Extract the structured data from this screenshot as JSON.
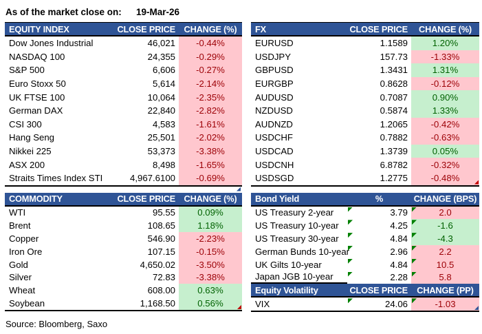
{
  "meta": {
    "as_of_label": "As of the market close on:",
    "as_of_date": "19-Mar-26",
    "source": "Source: Bloomberg, Saxo"
  },
  "colors": {
    "header_bg": "#2F5496",
    "header_text": "#FFFFFF",
    "positive_bg": "#C6EFCE",
    "positive_text": "#006100",
    "negative_bg": "#FFC7CE",
    "negative_text": "#9C0006",
    "error_flag_green": "#008000",
    "corner_red": "#C00000",
    "corner_blue": "#2F5496"
  },
  "tables": {
    "equity_index": {
      "cols": [
        "EQUITY INDEX",
        "CLOSE PRICE",
        "CHANGE (%)"
      ],
      "below_table_corner": "blue",
      "rows": [
        {
          "name": "Dow Jones Industrial",
          "close": "46,021",
          "change": "-0.44%",
          "tone": "red"
        },
        {
          "name": "NASDAQ 100",
          "close": "24,355",
          "change": "-0.29%",
          "tone": "red"
        },
        {
          "name": "S&P 500",
          "close": "6,606",
          "change": "-0.27%",
          "tone": "red"
        },
        {
          "name": "Euro Stoxx 50",
          "close": "5,614",
          "change": "-2.14%",
          "tone": "red"
        },
        {
          "name": "UK FTSE 100",
          "close": "10,064",
          "change": "-2.35%",
          "tone": "red"
        },
        {
          "name": "German DAX",
          "close": "22,840",
          "change": "-2.82%",
          "tone": "red"
        },
        {
          "name": "CSI 300",
          "close": "4,583",
          "change": "-1.61%",
          "tone": "red"
        },
        {
          "name": "Hang Seng",
          "close": "25,501",
          "change": "-2.02%",
          "tone": "red"
        },
        {
          "name": "Nikkei 225",
          "close": "53,373",
          "change": "-3.38%",
          "tone": "red"
        },
        {
          "name": "ASX 200",
          "close": "8,498",
          "change": "-1.65%",
          "tone": "red"
        },
        {
          "name": "Straits Times Index STI",
          "close": "4,967.6100",
          "change": "-0.69%",
          "tone": "red"
        }
      ]
    },
    "fx": {
      "cols": [
        "FX",
        "CLOSE PRICE",
        "CHANGE (%)"
      ],
      "rows": [
        {
          "name": "EURUSD",
          "close": "1.1589",
          "change": "1.20%",
          "tone": "green"
        },
        {
          "name": "USDJPY",
          "close": "157.73",
          "change": "-1.33%",
          "tone": "red"
        },
        {
          "name": "GBPUSD",
          "close": "1.3431",
          "change": "1.31%",
          "tone": "green"
        },
        {
          "name": "EURGBP",
          "close": "0.8628",
          "change": "-0.12%",
          "tone": "red"
        },
        {
          "name": "AUDUSD",
          "close": "0.7087",
          "change": "0.90%",
          "tone": "green"
        },
        {
          "name": "NZDUSD",
          "close": "0.5874",
          "change": "1.33%",
          "tone": "green"
        },
        {
          "name": "AUDNZD",
          "close": "1.2065",
          "change": "-0.42%",
          "tone": "red"
        },
        {
          "name": "USDCHF",
          "close": "0.7882",
          "change": "-0.63%",
          "tone": "red"
        },
        {
          "name": "USDCAD",
          "close": "1.3739",
          "change": "0.05%",
          "tone": "green"
        },
        {
          "name": "USDCNH",
          "close": "6.8782",
          "change": "-0.32%",
          "tone": "red"
        },
        {
          "name": "USDSGD",
          "close": "1.2775",
          "change": "-0.48%",
          "tone": "red",
          "corner": "red"
        }
      ]
    },
    "commodity": {
      "cols": [
        "COMMODITY",
        "CLOSE PRICE",
        "CHANGE (%)"
      ],
      "rows": [
        {
          "name": "WTI",
          "close": "95.55",
          "change": "0.09%",
          "tone": "green"
        },
        {
          "name": "Brent",
          "close": "108.65",
          "change": "1.18%",
          "tone": "green"
        },
        {
          "name": "Copper",
          "close": "546.90",
          "change": "-2.23%",
          "tone": "red"
        },
        {
          "name": "Iron Ore",
          "close": "107.15",
          "change": "-0.15%",
          "tone": "red"
        },
        {
          "name": "Gold",
          "close": "4,650.02",
          "change": "-3.50%",
          "tone": "red"
        },
        {
          "name": "Silver",
          "close": "72.83",
          "change": "-3.38%",
          "tone": "red"
        },
        {
          "name": "Wheat",
          "close": "608.00",
          "change": "0.63%",
          "tone": "green"
        },
        {
          "name": "Soybean",
          "close": "1,168.50",
          "change": "0.56%",
          "tone": "green",
          "corner": "red"
        }
      ]
    },
    "bond_yield": {
      "cols": [
        "Bond Yield",
        "%",
        "CHANGE (BPS)"
      ],
      "rows": [
        {
          "name": "US Treasury 2-year",
          "close": "3.79",
          "change": "2.0",
          "tone": "red",
          "flags": true
        },
        {
          "name": "US Treasury 10-year",
          "close": "4.25",
          "change": "-1.6",
          "tone": "green",
          "flags": true
        },
        {
          "name": "US Treasury 30-year",
          "close": "4.84",
          "change": "-4.3",
          "tone": "green",
          "flags": true
        },
        {
          "name": "German Bunds 10-year",
          "close": "2.96",
          "change": "2.2",
          "tone": "red",
          "flags": true
        },
        {
          "name": "UK Gilts 10-year",
          "close": "4.84",
          "change": "10.5",
          "tone": "red",
          "flags": true
        },
        {
          "name": "Japan JGB 10-year",
          "close": "2.28",
          "change": "5.8",
          "tone": "red",
          "flags": true
        }
      ]
    },
    "equity_volatility": {
      "cols": [
        "Equity Volatility",
        "CLOSE PRICE",
        "CHANGE (PP)"
      ],
      "rows": [
        {
          "name": "VIX",
          "close": "24.06",
          "change": "-1.03",
          "tone": "red",
          "flags": true,
          "corner": "blue"
        }
      ]
    }
  }
}
